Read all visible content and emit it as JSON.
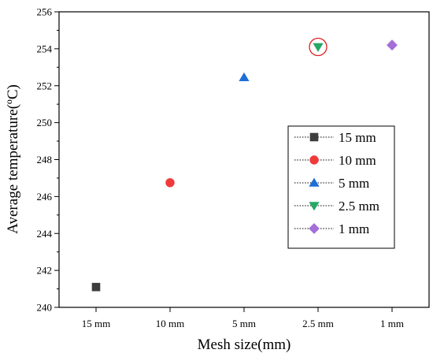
{
  "chart_data": {
    "type": "scatter",
    "xlabel": "Mesh size(mm)",
    "ylabel": "Average temperature(ºC)",
    "categories": [
      "15 mm",
      "10 mm",
      "5 mm",
      "2.5 mm",
      "1 mm"
    ],
    "ylim": [
      240,
      256
    ],
    "yticks": [
      "240",
      "242",
      "244",
      "246",
      "248",
      "250",
      "252",
      "254",
      "256"
    ],
    "series": [
      {
        "name": "15 mm",
        "category": "15 mm",
        "value": 241.1,
        "marker": "square",
        "color": "#3d3d3d"
      },
      {
        "name": "10 mm",
        "category": "10 mm",
        "value": 246.75,
        "marker": "circle",
        "color": "#f03a3a"
      },
      {
        "name": "5 mm",
        "category": "5 mm",
        "value": 252.45,
        "marker": "triangle-up",
        "color": "#1f6fd6"
      },
      {
        "name": "2.5 mm",
        "category": "2.5 mm",
        "value": 254.1,
        "marker": "triangle-down",
        "color": "#25a864"
      },
      {
        "name": "1 mm",
        "category": "1 mm",
        "value": 254.2,
        "marker": "diamond",
        "color": "#a36fd8"
      }
    ],
    "highlight": {
      "category": "2.5 mm",
      "color": "#e02020"
    },
    "legend_position": "right-middle",
    "grid": false
  }
}
